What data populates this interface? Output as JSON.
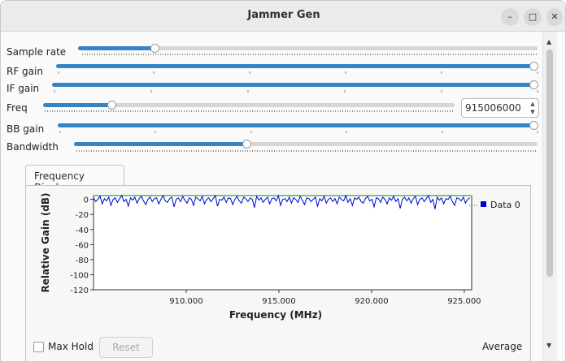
{
  "window": {
    "title": "Jammer Gen",
    "controls": {
      "minimize": "–",
      "maximize": "□",
      "close": "✕"
    }
  },
  "sliders": [
    {
      "label": "Sample rate",
      "value_fraction": 0.16
    },
    {
      "label": "RF gain",
      "value_fraction": 1.0
    },
    {
      "label": "IF gain",
      "value_fraction": 1.0
    },
    {
      "label": "Freq",
      "value_fraction": 0.16
    },
    {
      "label": "BB gain",
      "value_fraction": 1.0
    },
    {
      "label": "Bandwidth",
      "value_fraction": 0.37
    }
  ],
  "freq_spinbox": {
    "value": "915006000"
  },
  "tab": {
    "label": "Frequency Display"
  },
  "bottom": {
    "max_hold_label": "Max Hold",
    "max_hold_checked": false,
    "reset_label": "Reset",
    "average_label": "Average"
  },
  "scrollbar": {
    "up_icon": "▲",
    "down_icon": "▼"
  },
  "chart_data": {
    "type": "line",
    "title": "",
    "xlabel": "Frequency (MHz)",
    "ylabel": "Relative Gain (dB)",
    "xlim": [
      905.0,
      925.4
    ],
    "ylim": [
      -120,
      5
    ],
    "x_ticks": [
      "910.000",
      "915.000",
      "920.000",
      "925.000"
    ],
    "y_ticks": [
      "0",
      "-20",
      "-40",
      "-60",
      "-80",
      "-100",
      "-120"
    ],
    "legend": {
      "position": "right",
      "entries": [
        "Data 0"
      ]
    },
    "colors": {
      "data": "#0000cc",
      "max_line": "#80c080"
    },
    "series": [
      {
        "name": "Data 0",
        "x_start": 905.0,
        "x_end": 925.3,
        "values": [
          2,
          -3,
          0,
          4,
          -6,
          1,
          -2,
          3,
          -8,
          0,
          2,
          -4,
          1,
          5,
          -3,
          0,
          -9,
          2,
          -1,
          3,
          -5,
          1,
          4,
          -2,
          -7,
          0,
          3,
          -3,
          1,
          2,
          -6,
          0,
          5,
          -2,
          -4,
          1,
          3,
          -10,
          0,
          2,
          -3,
          4,
          -1,
          -5,
          2,
          0,
          -8,
          3,
          1,
          -2,
          4,
          -6,
          0,
          2,
          -3,
          1,
          5,
          -9,
          0,
          -1,
          3,
          -4,
          2,
          1,
          -7,
          0,
          4,
          -2,
          -5,
          3,
          1,
          -3,
          2,
          0,
          -11,
          4,
          -1,
          2,
          -4,
          0,
          3,
          -6,
          1,
          2,
          -2,
          5,
          -8,
          0,
          1,
          -3,
          3,
          -5,
          2,
          0,
          -4,
          4,
          -1,
          -7,
          2,
          1,
          -3,
          0,
          3,
          -9,
          1,
          -2,
          4,
          -5,
          0,
          2,
          -3,
          1,
          -6,
          3,
          0,
          -2,
          5,
          -4,
          1,
          -8,
          2,
          0,
          3,
          -3,
          -5,
          1,
          4,
          -2,
          0,
          -10,
          2,
          1,
          -4,
          3,
          0,
          -6,
          2,
          -1,
          4,
          -3,
          1,
          -12,
          0,
          3,
          -2,
          2,
          -5,
          1,
          4,
          -7,
          0,
          2,
          -3,
          1,
          5,
          -4,
          0,
          -13,
          3,
          -1,
          2,
          -6,
          1,
          0,
          4,
          -3,
          -8,
          2,
          1,
          -2,
          3,
          -5,
          0,
          2
        ]
      }
    ]
  }
}
